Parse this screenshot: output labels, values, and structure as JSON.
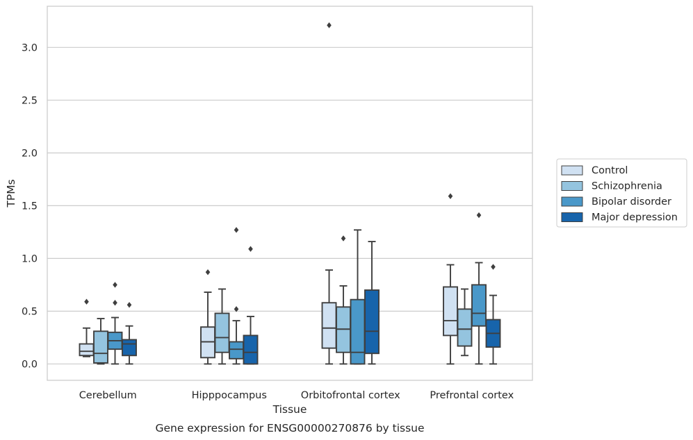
{
  "chart_data": {
    "type": "box",
    "xlabel": "Tissue",
    "ylabel": "TPMs",
    "caption": "Gene expression for ENSG00000270876 by tissue",
    "ylim": [
      -0.155,
      3.39
    ],
    "yticks": [
      "0.0",
      "0.5",
      "1.0",
      "1.5",
      "2.0",
      "2.5",
      "3.0"
    ],
    "grid": "horizontal",
    "legend_position": "right",
    "categories": [
      "Cerebellum",
      "Hipppocampus",
      "Orbitofrontal cortex",
      "Prefrontal cortex"
    ],
    "series": [
      {
        "name": "Control",
        "color": "#d0e1f2",
        "boxes": [
          {
            "whislo": 0.07,
            "q1": 0.08,
            "med": 0.12,
            "q3": 0.19,
            "whishi": 0.34,
            "fliers": [
              0.59
            ]
          },
          {
            "whislo": 0.0,
            "q1": 0.06,
            "med": 0.21,
            "q3": 0.35,
            "whishi": 0.68,
            "fliers": [
              0.87
            ]
          },
          {
            "whislo": 0.0,
            "q1": 0.15,
            "med": 0.34,
            "q3": 0.58,
            "whishi": 0.89,
            "fliers": [
              3.21
            ]
          },
          {
            "whislo": 0.0,
            "q1": 0.27,
            "med": 0.41,
            "q3": 0.73,
            "whishi": 0.94,
            "fliers": [
              1.59
            ]
          }
        ]
      },
      {
        "name": "Schizophrenia",
        "color": "#94c4df",
        "boxes": [
          {
            "whislo": 0.0,
            "q1": 0.01,
            "med": 0.1,
            "q3": 0.31,
            "whishi": 0.43,
            "fliers": []
          },
          {
            "whislo": 0.0,
            "q1": 0.11,
            "med": 0.25,
            "q3": 0.48,
            "whishi": 0.71,
            "fliers": []
          },
          {
            "whislo": 0.0,
            "q1": 0.11,
            "med": 0.33,
            "q3": 0.54,
            "whishi": 0.74,
            "fliers": [
              1.19
            ]
          },
          {
            "whislo": 0.08,
            "q1": 0.17,
            "med": 0.33,
            "q3": 0.52,
            "whishi": 0.71,
            "fliers": []
          }
        ]
      },
      {
        "name": "Bipolar disorder",
        "color": "#4a98c9",
        "boxes": [
          {
            "whislo": 0.0,
            "q1": 0.14,
            "med": 0.22,
            "q3": 0.3,
            "whishi": 0.44,
            "fliers": [
              0.58,
              0.75
            ]
          },
          {
            "whislo": 0.0,
            "q1": 0.05,
            "med": 0.14,
            "q3": 0.21,
            "whishi": 0.41,
            "fliers": [
              0.52,
              1.27
            ]
          },
          {
            "whislo": 0.0,
            "q1": 0.0,
            "med": 0.11,
            "q3": 0.61,
            "whishi": 1.27,
            "fliers": []
          },
          {
            "whislo": 0.0,
            "q1": 0.36,
            "med": 0.48,
            "q3": 0.75,
            "whishi": 0.96,
            "fliers": [
              1.41
            ]
          }
        ]
      },
      {
        "name": "Major depression",
        "color": "#1764ab",
        "boxes": [
          {
            "whislo": 0.0,
            "q1": 0.08,
            "med": 0.19,
            "q3": 0.23,
            "whishi": 0.36,
            "fliers": [
              0.56
            ]
          },
          {
            "whislo": 0.0,
            "q1": 0.0,
            "med": 0.11,
            "q3": 0.27,
            "whishi": 0.45,
            "fliers": [
              1.09
            ]
          },
          {
            "whislo": 0.0,
            "q1": 0.1,
            "med": 0.31,
            "q3": 0.7,
            "whishi": 1.16,
            "fliers": []
          },
          {
            "whislo": 0.0,
            "q1": 0.16,
            "med": 0.29,
            "q3": 0.42,
            "whishi": 0.65,
            "fliers": [
              0.92
            ]
          }
        ]
      }
    ]
  }
}
